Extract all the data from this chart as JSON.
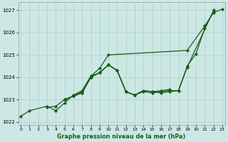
{
  "title": "Graphe pression niveau de la mer (hPa)",
  "bg_color": "#cde8e4",
  "grid_color": "#aacfc8",
  "line_color": "#1a5c1a",
  "xlim": [
    -0.3,
    23.3
  ],
  "ylim": [
    1021.85,
    1027.35
  ],
  "yticks": [
    1022,
    1023,
    1024,
    1025,
    1026,
    1027
  ],
  "xticks": [
    0,
    1,
    2,
    3,
    4,
    5,
    6,
    7,
    8,
    9,
    10,
    11,
    12,
    13,
    14,
    15,
    16,
    17,
    18,
    19,
    20,
    21,
    22,
    23
  ],
  "series": [
    {
      "x": [
        0,
        1,
        3,
        4,
        5,
        6,
        7,
        8,
        9,
        10,
        19,
        21,
        22,
        23
      ],
      "y": [
        1022.25,
        1022.5,
        1022.7,
        1022.5,
        1022.85,
        1023.2,
        1023.4,
        1024.05,
        1024.4,
        1025.0,
        1025.2,
        1026.3,
        1026.9,
        1027.05
      ]
    },
    {
      "x": [
        3,
        4,
        5,
        6,
        7,
        8,
        9,
        10,
        11,
        12,
        13,
        14,
        15,
        16,
        17,
        18,
        19,
        22
      ],
      "y": [
        1022.65,
        1022.7,
        1023.0,
        1023.15,
        1023.3,
        1024.0,
        1024.2,
        1024.55,
        1024.3,
        1023.35,
        1023.2,
        1023.4,
        1023.35,
        1023.3,
        1023.35,
        1023.4,
        1024.45,
        1027.0
      ]
    },
    {
      "x": [
        5,
        6,
        7,
        8,
        9,
        10,
        11,
        12,
        13,
        14,
        15,
        16,
        17,
        18,
        19,
        20,
        21,
        22
      ],
      "y": [
        1023.0,
        1023.15,
        1023.3,
        1024.0,
        1024.2,
        1024.55,
        1024.3,
        1023.35,
        1023.2,
        1023.35,
        1023.3,
        1023.35,
        1023.4,
        1023.4,
        1024.5,
        1025.05,
        1026.2,
        1026.95
      ]
    },
    {
      "x": [
        5,
        6,
        7,
        8,
        9,
        10,
        11,
        12,
        13,
        14,
        15,
        16,
        17
      ],
      "y": [
        1023.0,
        1023.15,
        1023.35,
        1024.05,
        1024.2,
        1024.55,
        1024.3,
        1023.35,
        1023.2,
        1023.4,
        1023.35,
        1023.4,
        1023.45
      ]
    }
  ]
}
